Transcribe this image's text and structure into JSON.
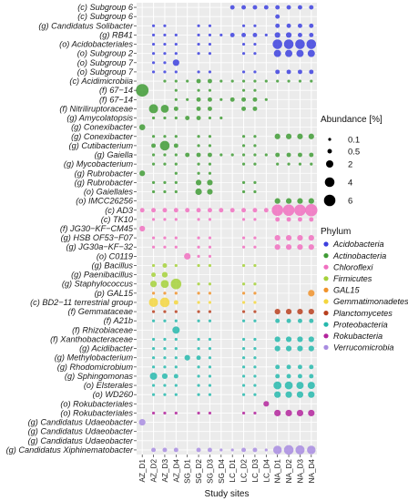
{
  "chart_data": {
    "type": "bubble",
    "xlabel": "Study sites",
    "ylabel": "",
    "categories": [
      "AZ_D1",
      "AZ_D2",
      "AZ_D3",
      "AZ_D4",
      "SG_D1",
      "SG_D2",
      "SG_D3",
      "SG_D4",
      "LC_D1",
      "LC_D2",
      "LC_D3",
      "LC_D4",
      "NA_D1",
      "NA_D2",
      "NA_D3",
      "NA_D4"
    ],
    "taxa": [
      {
        "label": "(c) Subgroup 6",
        "phylum": "Acidobacteria"
      },
      {
        "label": "(c) Subgroup  6",
        "phylum": "Acidobacteria"
      },
      {
        "label": "(g) Candidatus Solibacter",
        "phylum": "Acidobacteria"
      },
      {
        "label": "(g) RB41",
        "phylum": "Acidobacteria"
      },
      {
        "label": "(o) Acidobacteriales",
        "phylum": "Acidobacteria"
      },
      {
        "label": "(o) Subgroup 2",
        "phylum": "Acidobacteria"
      },
      {
        "label": "(o) Subgroup 7",
        "phylum": "Acidobacteria"
      },
      {
        "label": "(o) Subgroup  7",
        "phylum": "Acidobacteria"
      },
      {
        "label": "(c) Acidimicrobiia",
        "phylum": "Actinobacteria"
      },
      {
        "label": "(f) 67−14",
        "phylum": "Actinobacteria"
      },
      {
        "label": "(f) 67−14",
        "phylum": "Actinobacteria"
      },
      {
        "label": "(f) Nitriliruptoraceae",
        "phylum": "Actinobacteria"
      },
      {
        "label": "(g) Amycolatopsis",
        "phylum": "Actinobacteria"
      },
      {
        "label": "(g) Conexibacter",
        "phylum": "Actinobacteria"
      },
      {
        "label": "(g) Conexibacter",
        "phylum": "Actinobacteria"
      },
      {
        "label": "(g) Cutibacterium",
        "phylum": "Actinobacteria"
      },
      {
        "label": "(g) Gaiella",
        "phylum": "Actinobacteria"
      },
      {
        "label": "(g) Mycobacterium",
        "phylum": "Actinobacteria"
      },
      {
        "label": "(g) Rubrobacter",
        "phylum": "Actinobacteria"
      },
      {
        "label": "(g) Rubrobacter",
        "phylum": "Actinobacteria"
      },
      {
        "label": "(o) Gaiellales",
        "phylum": "Actinobacteria"
      },
      {
        "label": "(o) IMCC26256",
        "phylum": "Actinobacteria"
      },
      {
        "label": "(c) AD3",
        "phylum": "Chloroflexi"
      },
      {
        "label": "(c) TK10",
        "phylum": "Chloroflexi"
      },
      {
        "label": "(f) JG30−KF−CM45",
        "phylum": "Chloroflexi"
      },
      {
        "label": "(g) HSB OF53−F07",
        "phylum": "Chloroflexi"
      },
      {
        "label": "(g) JG30a−KF−32",
        "phylum": "Chloroflexi"
      },
      {
        "label": "(o) C0119",
        "phylum": "Chloroflexi"
      },
      {
        "label": "(g) Bacillus",
        "phylum": "Firmicutes"
      },
      {
        "label": "(g) Paenibacillus",
        "phylum": "Firmicutes"
      },
      {
        "label": "(g) Staphylococcus",
        "phylum": "Firmicutes"
      },
      {
        "label": "(p) GAL15",
        "phylum": "GAL15"
      },
      {
        "label": "(c) BD2−11 terrestrial group",
        "phylum": "Gemmatimonadetes"
      },
      {
        "label": "(f) Gemmataceae",
        "phylum": "Planctomycetes"
      },
      {
        "label": "(f) A21b",
        "phylum": "Proteobacteria"
      },
      {
        "label": "(f) Rhizobiaceae",
        "phylum": "Proteobacteria"
      },
      {
        "label": "(f) Xanthobacteraceae",
        "phylum": "Proteobacteria"
      },
      {
        "label": "(g) Acidibacter",
        "phylum": "Proteobacteria"
      },
      {
        "label": "(g) Methylobacterium",
        "phylum": "Proteobacteria"
      },
      {
        "label": "(g) Rhodomicrobium",
        "phylum": "Proteobacteria"
      },
      {
        "label": "(g) Sphingomonas",
        "phylum": "Proteobacteria"
      },
      {
        "label": "(o) Elsterales",
        "phylum": "Proteobacteria"
      },
      {
        "label": "(o) WD260",
        "phylum": "Proteobacteria"
      },
      {
        "label": "(o) Rokubacteriales",
        "phylum": "Rokubacteria"
      },
      {
        "label": "(o) Rokubacteriales",
        "phylum": "Rokubacteria"
      },
      {
        "label": "(g) Candidatus Udaeobacter",
        "phylum": "Verrucomicrobia"
      },
      {
        "label": "(g) Candidatus Udaeobacter",
        "phylum": "Verrucomicrobia"
      },
      {
        "label": "(g) Candidatus Udaeobacter",
        "phylum": "Verrucomicrobia"
      },
      {
        "label": "(g) Candidatus Xiphinematobacter",
        "phylum": "Verrucomicrobia"
      }
    ],
    "abundance": [
      [
        0,
        0,
        0,
        0,
        0,
        0,
        0,
        0,
        0.5,
        0.5,
        0.5,
        0.5,
        0.5,
        0.5,
        0.5,
        0.5
      ],
      [
        0,
        0,
        0,
        0,
        0,
        0,
        0,
        0,
        0,
        0,
        0,
        0,
        0.5,
        0,
        0,
        0
      ],
      [
        0,
        0.1,
        0.1,
        0,
        0,
        0.1,
        0.1,
        0,
        0,
        0.1,
        0.1,
        0,
        0.5,
        0.5,
        0.5,
        0.5
      ],
      [
        0,
        0.1,
        0.1,
        0.1,
        0,
        0.1,
        0.1,
        0.1,
        0.5,
        0.5,
        0.5,
        0.1,
        1,
        1,
        0.5,
        0.5
      ],
      [
        0,
        0.1,
        0.1,
        0.1,
        0,
        0.1,
        0.1,
        0,
        0,
        0.1,
        0.1,
        0,
        4,
        4,
        4,
        4
      ],
      [
        0,
        0.1,
        0.1,
        0.1,
        0,
        0.1,
        0.1,
        0,
        0,
        0.1,
        0.1,
        0,
        2,
        2,
        2,
        2
      ],
      [
        0,
        0.1,
        0.1,
        1.5,
        0,
        0,
        0,
        0,
        0,
        0,
        0,
        0,
        0,
        0,
        0,
        0
      ],
      [
        0,
        0.1,
        0.1,
        0.1,
        0,
        0.1,
        0.1,
        0,
        0,
        0.1,
        0.1,
        0,
        0.5,
        0.5,
        0.5,
        0.5
      ],
      [
        0,
        0,
        0.1,
        0.1,
        0.1,
        0.5,
        0.5,
        0.1,
        0.1,
        0.1,
        0.1,
        0.1,
        0.1,
        0.1,
        0.1,
        0.1
      ],
      [
        7.5,
        0,
        0,
        0.1,
        0,
        0.1,
        0.1,
        0,
        0,
        0.1,
        0.1,
        0,
        0,
        0,
        0,
        0
      ],
      [
        0,
        0,
        0,
        0.1,
        0.1,
        0.5,
        0.5,
        0.1,
        0.5,
        0.5,
        0.5,
        0.1,
        0,
        0,
        0,
        0
      ],
      [
        0,
        3.5,
        2.5,
        0.5,
        0,
        0.5,
        0.5,
        0,
        0,
        0.5,
        0.5,
        0,
        0,
        0,
        0,
        0
      ],
      [
        0,
        0.1,
        0.1,
        0.1,
        0.5,
        0.5,
        0.1,
        0.1,
        0,
        0,
        0,
        0,
        0,
        0,
        0,
        0
      ],
      [
        1.2,
        0,
        0,
        0,
        0,
        0,
        0,
        0,
        0,
        0,
        0,
        0,
        0,
        0,
        0,
        0
      ],
      [
        0,
        0.1,
        0.1,
        0.1,
        0,
        0.1,
        0.1,
        0,
        0,
        0.1,
        0.1,
        0,
        1,
        1,
        1,
        1
      ],
      [
        0,
        0.5,
        4,
        0.5,
        0,
        0.1,
        0.1,
        0,
        0,
        0.1,
        0.1,
        0,
        0,
        0,
        0,
        0
      ],
      [
        0,
        0.1,
        0.1,
        0.1,
        0.5,
        0.5,
        0.5,
        0.1,
        0.1,
        0.1,
        0.1,
        0.1,
        0.5,
        0.5,
        0.5,
        0.5
      ],
      [
        0,
        0.1,
        0.1,
        0.1,
        0,
        0.1,
        0.1,
        0,
        0,
        0.1,
        0.1,
        0,
        0.1,
        0.1,
        0.1,
        0.1
      ],
      [
        1,
        0,
        0,
        0.1,
        0,
        0.1,
        0.1,
        0,
        0,
        0,
        0,
        0,
        0,
        0,
        0,
        0
      ],
      [
        0,
        0.1,
        0.1,
        0.1,
        0,
        1,
        1,
        0,
        0,
        0.1,
        0.1,
        0,
        0,
        0,
        0,
        0
      ],
      [
        0,
        0.1,
        0.1,
        0.1,
        0,
        1.5,
        1,
        0,
        0,
        0.1,
        0.1,
        0,
        0,
        0,
        0,
        0
      ],
      [
        0,
        0,
        0,
        0,
        0,
        0,
        0,
        0,
        0,
        0,
        0,
        0,
        1,
        1,
        1,
        1
      ],
      [
        0.5,
        0.5,
        0.5,
        0.5,
        0.5,
        0.5,
        0.5,
        0.5,
        0.5,
        0.5,
        0.5,
        0.5,
        6,
        6,
        6,
        7
      ],
      [
        0,
        0.1,
        0.1,
        0.1,
        0,
        0.1,
        0.1,
        0,
        0,
        0.1,
        0.1,
        0,
        0.5,
        0.5,
        0.5,
        0.5
      ],
      [
        1,
        0,
        0,
        0,
        0,
        0,
        0,
        0,
        0,
        0,
        0,
        0,
        0,
        0,
        0,
        0
      ],
      [
        0,
        0.1,
        0.1,
        0.1,
        0,
        0.1,
        0.1,
        0,
        0,
        0.1,
        0.1,
        0,
        1,
        1,
        1,
        1
      ],
      [
        0,
        0.1,
        0.1,
        0.1,
        0,
        0.1,
        0.1,
        0,
        0,
        0.1,
        0.1,
        0,
        1,
        1,
        1,
        1
      ],
      [
        0,
        0,
        0,
        0,
        1.5,
        0.1,
        0.1,
        0,
        0,
        0,
        0,
        0,
        0,
        0,
        0,
        0
      ],
      [
        0,
        0.1,
        0.5,
        0.1,
        0,
        0.1,
        0.1,
        0,
        0,
        0.1,
        0.1,
        0,
        0,
        0,
        0,
        0
      ],
      [
        0,
        0.5,
        1,
        0,
        0,
        0,
        0,
        0,
        0,
        0,
        0,
        0,
        0,
        0,
        0,
        0
      ],
      [
        0,
        1.5,
        2.5,
        5,
        0,
        0.1,
        0.1,
        0,
        0,
        0.1,
        0.1,
        0,
        0,
        0,
        0,
        0
      ],
      [
        0,
        0.1,
        0.1,
        0.1,
        0,
        0.1,
        0.1,
        0,
        0,
        0.1,
        0.1,
        0,
        0,
        0,
        0,
        1.5
      ],
      [
        0,
        3.5,
        4,
        0.5,
        0,
        0.1,
        0.1,
        0,
        0,
        0.1,
        0.1,
        0,
        0,
        0,
        0,
        0
      ],
      [
        0,
        0.1,
        0.1,
        0.1,
        0,
        0.1,
        0.1,
        0,
        0,
        0.1,
        0.1,
        0,
        1,
        1,
        1,
        1
      ],
      [
        0,
        0.1,
        0.1,
        0.1,
        0,
        0.1,
        0.1,
        0,
        0,
        0.1,
        0.1,
        0,
        0.5,
        0.5,
        0.5,
        0.5
      ],
      [
        0,
        0,
        0,
        2,
        0,
        0,
        0,
        0,
        0,
        0,
        0,
        0,
        0,
        0,
        0,
        0
      ],
      [
        0,
        0.1,
        0.1,
        0.1,
        0,
        0.1,
        0.1,
        0,
        0,
        0.1,
        0.1,
        0,
        1,
        1,
        1,
        1
      ],
      [
        0,
        0.1,
        0.1,
        0.1,
        0,
        0.1,
        0.1,
        0,
        0,
        0.1,
        0.1,
        0,
        1,
        1,
        1,
        1
      ],
      [
        0,
        0.1,
        0.1,
        0.1,
        1,
        0.5,
        0.1,
        0,
        0,
        0.1,
        0.1,
        0,
        0,
        0,
        0,
        0
      ],
      [
        0,
        0.1,
        0.1,
        0.1,
        0,
        0.1,
        0.1,
        0,
        0,
        0.1,
        0.1,
        0,
        0.5,
        0.5,
        0.5,
        0.5
      ],
      [
        0,
        2,
        1,
        0.5,
        0,
        0.1,
        0.1,
        0,
        0,
        0.1,
        0.1,
        0,
        0.5,
        0.5,
        0.5,
        0.5
      ],
      [
        0,
        0.1,
        0.1,
        0.1,
        0,
        0.1,
        0.1,
        0,
        0,
        0.1,
        0.1,
        0,
        2.5,
        2.5,
        2,
        2
      ],
      [
        0,
        0.1,
        0.1,
        0.1,
        0,
        0.1,
        0.1,
        0,
        0,
        0.1,
        0.1,
        0,
        1.5,
        1.5,
        1.5,
        1.5
      ],
      [
        0,
        0,
        0,
        0,
        0,
        0,
        0,
        0,
        0,
        0,
        0,
        1,
        0,
        0,
        0,
        0
      ],
      [
        0,
        0.1,
        0.1,
        0.1,
        0,
        0.1,
        0.1,
        0,
        0,
        0.1,
        0.1,
        0,
        1.5,
        1.5,
        1.5,
        1.5
      ],
      [
        1.5,
        0,
        0,
        0,
        0,
        0,
        0,
        0,
        0,
        0,
        0,
        0,
        0,
        0,
        0,
        0
      ],
      [
        0,
        0,
        0,
        0,
        0,
        0,
        0,
        0,
        0,
        0,
        0,
        0,
        0,
        0,
        0,
        0
      ],
      [
        0,
        0,
        0,
        0,
        0,
        0,
        0,
        0,
        0,
        0,
        0,
        0,
        0,
        0,
        0,
        0
      ],
      [
        0,
        0.5,
        0.5,
        0.5,
        0,
        0.5,
        0.5,
        0.1,
        0.1,
        0.5,
        0.5,
        0.1,
        3,
        4,
        3.5,
        3
      ]
    ],
    "size_legend": {
      "title": "Abundance [%]",
      "values": [
        0.1,
        0.5,
        2,
        4,
        6
      ]
    },
    "color_legend": {
      "title": "Phylum",
      "entries": [
        {
          "name": "Acidobacteria",
          "color": "#3c3fde"
        },
        {
          "name": "Actinobacteria",
          "color": "#3f9b35"
        },
        {
          "name": "Chloroflexi",
          "color": "#f070c0"
        },
        {
          "name": "Firmicutes",
          "color": "#a5d13a"
        },
        {
          "name": "GAL15",
          "color": "#f0922b"
        },
        {
          "name": "Gemmatimonadetes",
          "color": "#f3d63e"
        },
        {
          "name": "Planctomycetes",
          "color": "#b8401f"
        },
        {
          "name": "Proteobacteria",
          "color": "#26b8ad"
        },
        {
          "name": "Rokubacteria",
          "color": "#b3249c"
        },
        {
          "name": "Verrucomicrobia",
          "color": "#a88ce0"
        }
      ]
    },
    "grid": true,
    "legend_position": "right"
  }
}
